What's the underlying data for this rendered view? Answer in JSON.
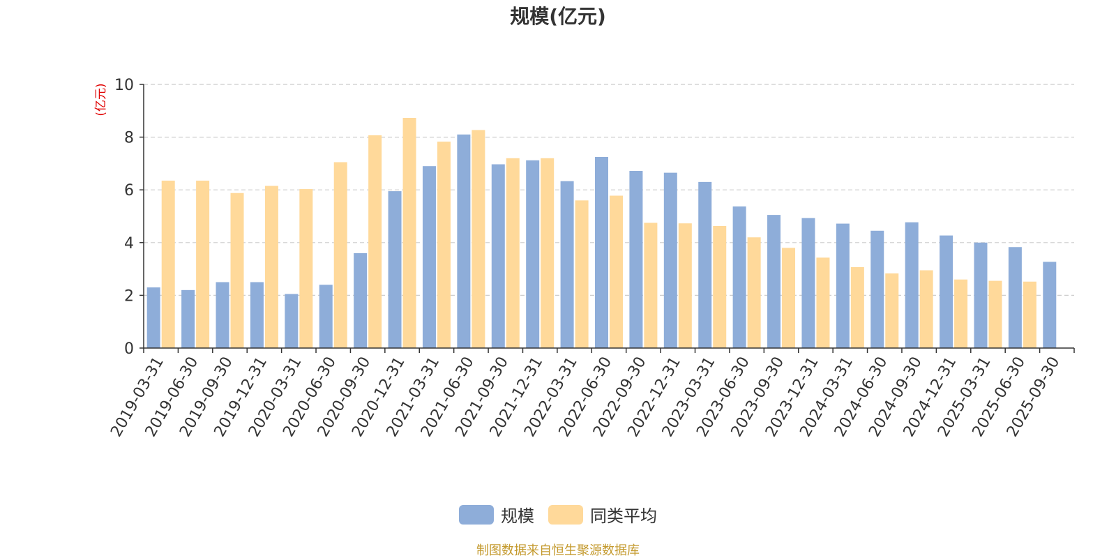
{
  "chart_data": {
    "type": "bar",
    "title": "规模(亿元)",
    "ylabel": "(亿元)",
    "ylim": [
      0,
      10
    ],
    "yticks": [
      0,
      2,
      4,
      6,
      8,
      10
    ],
    "grid": true,
    "legend_position": "bottom",
    "categories": [
      "2019-03-31",
      "2019-06-30",
      "2019-09-30",
      "2019-12-31",
      "2020-03-31",
      "2020-06-30",
      "2020-09-30",
      "2020-12-31",
      "2021-03-31",
      "2021-06-30",
      "2021-09-30",
      "2021-12-31",
      "2022-03-31",
      "2022-06-30",
      "2022-09-30",
      "2022-12-31",
      "2023-03-31",
      "2023-06-30",
      "2023-09-30",
      "2023-12-31",
      "2024-03-31",
      "2024-06-30",
      "2024-09-30",
      "2024-12-31",
      "2025-03-31",
      "2025-06-30",
      "2025-09-30"
    ],
    "series": [
      {
        "name": "规模",
        "color": "#8eadd9",
        "values": [
          2.3,
          2.2,
          2.5,
          2.5,
          2.05,
          2.4,
          3.6,
          5.95,
          6.9,
          8.1,
          6.97,
          7.12,
          6.33,
          7.25,
          6.72,
          6.65,
          6.3,
          5.37,
          5.05,
          4.93,
          4.72,
          4.45,
          4.77,
          4.27,
          4.0,
          3.83,
          3.27
        ]
      },
      {
        "name": "同类平均",
        "color": "#ffd99a",
        "values": [
          6.35,
          6.35,
          5.88,
          6.15,
          6.03,
          7.05,
          8.07,
          8.73,
          7.83,
          8.27,
          7.2,
          7.2,
          5.6,
          5.78,
          4.75,
          4.73,
          4.63,
          4.2,
          3.8,
          3.43,
          3.07,
          2.83,
          2.95,
          2.6,
          2.55,
          2.52,
          null
        ]
      }
    ]
  },
  "source_note": "制图数据来自恒生聚源数据库"
}
